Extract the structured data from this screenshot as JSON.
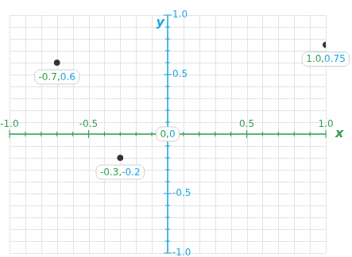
{
  "chart_data": {
    "type": "scatter",
    "x": [
      -0.7,
      1.0,
      -0.3
    ],
    "values": [
      0.6,
      0.75,
      -0.2
    ],
    "color": "#333333",
    "data_labels": true,
    "value_labels": [
      "-0.7,0.6",
      "1.0,0.75",
      "-0.3,-0.2"
    ],
    "xlabel": "x",
    "ylabel": "y",
    "xlim": [
      -1,
      1
    ],
    "ylim": [
      -1,
      1
    ],
    "xticks": [
      {
        "value": -1,
        "label": "-1.0"
      },
      -0.5,
      0.5,
      {
        "value": 1,
        "label": "1.0"
      }
    ],
    "yticks": [
      {
        "value": -1,
        "label": "-1.0"
      },
      -0.5,
      0.5,
      {
        "value": 1,
        "label": "1.0"
      }
    ],
    "grid": true,
    "annotations": [
      {
        "text": "0,0",
        "x": 0,
        "y": 0
      }
    ]
  }
}
